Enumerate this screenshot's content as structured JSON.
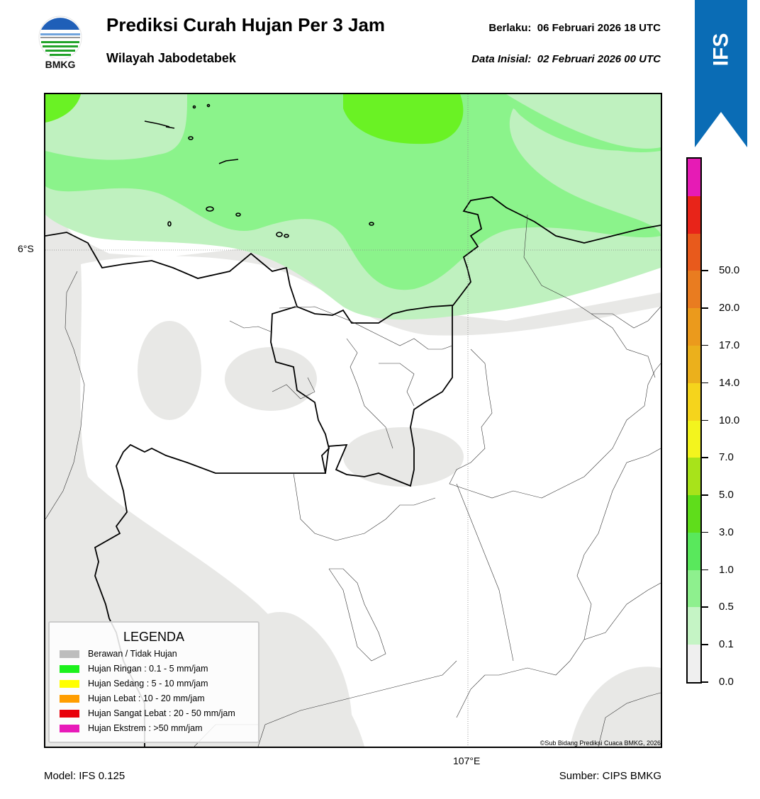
{
  "header": {
    "title": "Prediksi Curah Hujan Per 3 Jam",
    "subtitle": "Wilayah Jabodetabek",
    "valid_label": "Berlaku:",
    "valid_time": "06 Februari 2026 18 UTC",
    "init_label": "Data Inisial:",
    "init_time": "02 Februari 2026 00 UTC",
    "logo_text": "BMKG",
    "badge_text": "IFS"
  },
  "map": {
    "lat_label": "6°S",
    "lon_label": "107°E",
    "copyright": "©Sub Bidang Prediksi Cuaca BMKG, 2026"
  },
  "legend": {
    "title": "LEGENDA",
    "items": [
      {
        "label": "Berawan / Tidak Hujan",
        "color": "#bdbdbd"
      },
      {
        "label": "Hujan Ringan : 0.1 - 5 mm/jam",
        "color": "#1cf11c"
      },
      {
        "label": "Hujan Sedang : 5 - 10 mm/jam",
        "color": "#ffff00"
      },
      {
        "label": "Hujan Lebat : 10 - 20 mm/jam",
        "color": "#ff9d00"
      },
      {
        "label": "Hujan Sangat Lebat : 20 - 50 mm/jam",
        "color": "#e8000a"
      },
      {
        "label": "Hujan Ekstrem : >50 mm/jam",
        "color": "#e81ab9"
      }
    ]
  },
  "colorbar": {
    "segments": [
      "#efefef",
      "#c5f4c5",
      "#8ef08e",
      "#59e85c",
      "#5fdd1b",
      "#a8e31a",
      "#f3f41e",
      "#f5d41c",
      "#ebb01c",
      "#eb9a1c",
      "#e97c20",
      "#e85a1c",
      "#e82419",
      "#e61bb5"
    ],
    "labels": [
      "0.0",
      "0.1",
      "0.5",
      "1.0",
      "3.0",
      "5.0",
      "7.0",
      "10.0",
      "14.0",
      "17.0",
      "20.0",
      "50.0"
    ]
  },
  "footer": {
    "model": "Model: IFS 0.125",
    "source": "Sumber: CIPS BMKG"
  }
}
